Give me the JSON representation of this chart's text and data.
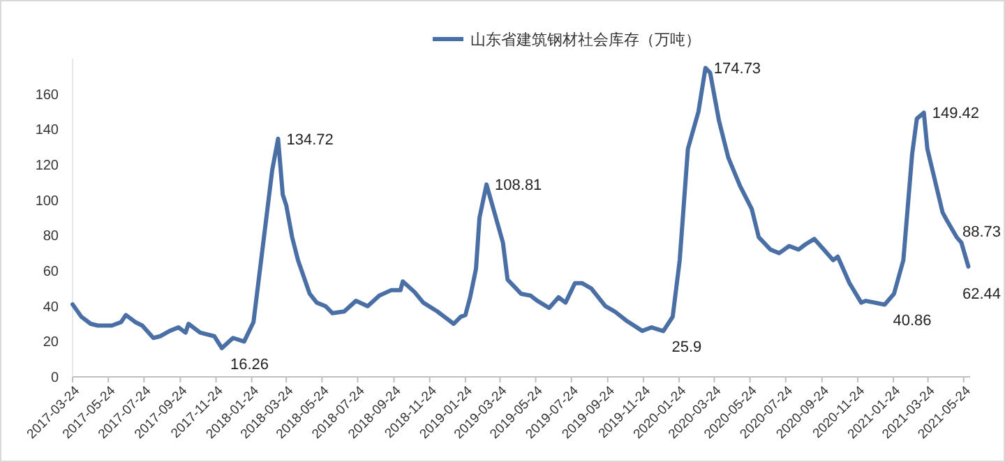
{
  "chart_data": {
    "type": "line",
    "legend": "top",
    "marker": "none",
    "line_style": "solid",
    "grid": false,
    "x": [
      "2017-03-24",
      "2017-04-08",
      "2017-04-24",
      "2017-05-06",
      "2017-05-30",
      "2017-06-15",
      "2017-06-23",
      "2017-07-09",
      "2017-07-21",
      "2017-08-09",
      "2017-08-21",
      "2017-09-06",
      "2017-09-21",
      "2017-10-03",
      "2017-10-08",
      "2017-10-28",
      "2017-11-21",
      "2017-12-04",
      "2017-12-23",
      "2018-01-11",
      "2018-01-27",
      "2018-02-12",
      "2018-02-28",
      "2018-03-10",
      "2018-03-18",
      "2018-03-24",
      "2018-04-03",
      "2018-04-13",
      "2018-05-03",
      "2018-05-15",
      "2018-05-30",
      "2018-06-11",
      "2018-07-01",
      "2018-07-21",
      "2018-08-10",
      "2018-08-30",
      "2018-09-19",
      "2018-10-05",
      "2018-10-09",
      "2018-10-29",
      "2018-11-13",
      "2018-12-07",
      "2018-12-19",
      "2019-01-04",
      "2019-01-16",
      "2019-01-24",
      "2019-02-01",
      "2019-02-11",
      "2019-02-17",
      "2019-03-01",
      "2019-03-29",
      "2019-04-06",
      "2019-04-29",
      "2019-05-15",
      "2019-05-27",
      "2019-06-16",
      "2019-07-02",
      "2019-07-14",
      "2019-07-30",
      "2019-08-11",
      "2019-08-27",
      "2019-09-20",
      "2019-10-06",
      "2019-10-25",
      "2019-11-22",
      "2019-12-08",
      "2019-12-28",
      "2020-01-13",
      "2020-01-25",
      "2020-02-08",
      "2020-02-26",
      "2020-03-09",
      "2020-03-17",
      "2020-04-01",
      "2020-04-17",
      "2020-05-07",
      "2020-05-27",
      "2020-06-08",
      "2020-06-28",
      "2020-07-13",
      "2020-07-30",
      "2020-08-15",
      "2020-08-27",
      "2020-09-11",
      "2020-09-27",
      "2020-10-13",
      "2020-10-21",
      "2020-11-10",
      "2020-11-30",
      "2020-12-08",
      "2021-01-09",
      "2021-01-25",
      "2021-02-10",
      "2021-02-25",
      "2021-03-05",
      "2021-03-17",
      "2021-03-23",
      "2021-04-18",
      "2021-04-25",
      "2021-05-12",
      "2021-05-20",
      "2021-06-01"
    ],
    "series": [
      {
        "name": "山东省建筑钢材社会库存（万吨）",
        "color": "#4a6fa5",
        "values": [
          41,
          34,
          30,
          29,
          29,
          31,
          35,
          31,
          29,
          22,
          23,
          26,
          28,
          25,
          30,
          25,
          23,
          16.26,
          22,
          20,
          31,
          74,
          117,
          134.72,
          103,
          97,
          79,
          66,
          47,
          42,
          40,
          36,
          37,
          43,
          40,
          46,
          49,
          49,
          54,
          48,
          42,
          37,
          34,
          30,
          34,
          35,
          45,
          61,
          90,
          108.81,
          76,
          55,
          47,
          46,
          43,
          39,
          45,
          42,
          53,
          53,
          50,
          40,
          37,
          32,
          26,
          28,
          25.9,
          34,
          66,
          129,
          150,
          174.73,
          172,
          145,
          124,
          108,
          95,
          79,
          72,
          70,
          74,
          72,
          75,
          78,
          72,
          66,
          68,
          53,
          42,
          43,
          40.86,
          47,
          66,
          126,
          146,
          149.42,
          129,
          93,
          88.73,
          79,
          76,
          62.44
        ]
      }
    ],
    "xlim": [
      "2017-03-24",
      "2021-06-04"
    ],
    "xticks": [
      "2017-03-24",
      "2017-05-24",
      "2017-07-24",
      "2017-09-24",
      "2017-11-24",
      "2018-01-24",
      "2018-03-24",
      "2018-05-24",
      "2018-07-24",
      "2018-09-24",
      "2018-11-24",
      "2019-01-24",
      "2019-03-24",
      "2019-05-24",
      "2019-07-24",
      "2019-09-24",
      "2019-11-24",
      "2020-01-24",
      "2020-03-24",
      "2020-05-24",
      "2020-07-24",
      "2020-09-24",
      "2020-11-24",
      "2021-01-24",
      "2021-03-24",
      "2021-05-24"
    ],
    "ylim": [
      0,
      180
    ],
    "yticks": [
      0,
      20,
      40,
      60,
      80,
      100,
      120,
      140,
      160
    ],
    "annotations": [
      {
        "text": "16.26",
        "x": "2017-12-04",
        "y": 16.26
      },
      {
        "text": "134.72",
        "x": "2018-03-10",
        "y": 134.72
      },
      {
        "text": "108.81",
        "x": "2019-03-01",
        "y": 108.81
      },
      {
        "text": "25.9",
        "x": "2019-12-28",
        "y": 25.9
      },
      {
        "text": "174.73",
        "x": "2020-03-09",
        "y": 174.73
      },
      {
        "text": "40.86",
        "x": "2021-01-09",
        "y": 40.86
      },
      {
        "text": "149.42",
        "x": "2021-03-17",
        "y": 149.42
      },
      {
        "text": "88.73",
        "x": "2021-04-25",
        "y": 88.73
      },
      {
        "text": "62.44",
        "x": "2021-06-01",
        "y": 62.44
      }
    ]
  }
}
